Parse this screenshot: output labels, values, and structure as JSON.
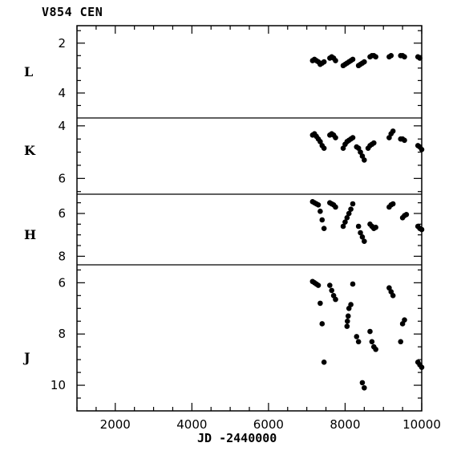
{
  "chart_data": {
    "type": "scatter",
    "title": "V854 CEN",
    "xlabel": "JD -2440000",
    "xlim": [
      1000,
      10000
    ],
    "xticks": [
      "2000",
      "4000",
      "6000",
      "8000",
      "10000"
    ],
    "panels": [
      {
        "label": "L",
        "ylim": [
          1.3,
          5.0
        ],
        "yticks": [
          "2",
          "4"
        ],
        "points": [
          [
            7150,
            2.7
          ],
          [
            7200,
            2.65
          ],
          [
            7250,
            2.7
          ],
          [
            7300,
            2.75
          ],
          [
            7350,
            2.85
          ],
          [
            7400,
            2.8
          ],
          [
            7450,
            2.75
          ],
          [
            7600,
            2.6
          ],
          [
            7650,
            2.55
          ],
          [
            7700,
            2.6
          ],
          [
            7750,
            2.7
          ],
          [
            7950,
            2.9
          ],
          [
            8000,
            2.85
          ],
          [
            8050,
            2.8
          ],
          [
            8100,
            2.75
          ],
          [
            8150,
            2.7
          ],
          [
            8200,
            2.65
          ],
          [
            8350,
            2.9
          ],
          [
            8400,
            2.85
          ],
          [
            8450,
            2.8
          ],
          [
            8500,
            2.75
          ],
          [
            8650,
            2.55
          ],
          [
            8700,
            2.5
          ],
          [
            8750,
            2.5
          ],
          [
            8800,
            2.55
          ],
          [
            9150,
            2.55
          ],
          [
            9200,
            2.5
          ],
          [
            9450,
            2.5
          ],
          [
            9500,
            2.5
          ],
          [
            9550,
            2.55
          ],
          [
            9900,
            2.55
          ],
          [
            9950,
            2.6
          ]
        ]
      },
      {
        "label": "K",
        "ylim": [
          3.7,
          6.6
        ],
        "yticks": [
          "4",
          "6"
        ],
        "points": [
          [
            7150,
            4.35
          ],
          [
            7200,
            4.3
          ],
          [
            7250,
            4.4
          ],
          [
            7300,
            4.5
          ],
          [
            7350,
            4.6
          ],
          [
            7400,
            4.75
          ],
          [
            7450,
            4.85
          ],
          [
            7600,
            4.35
          ],
          [
            7650,
            4.3
          ],
          [
            7700,
            4.35
          ],
          [
            7750,
            4.45
          ],
          [
            7950,
            4.85
          ],
          [
            8000,
            4.7
          ],
          [
            8050,
            4.6
          ],
          [
            8100,
            4.55
          ],
          [
            8150,
            4.5
          ],
          [
            8200,
            4.45
          ],
          [
            8300,
            4.8
          ],
          [
            8350,
            4.85
          ],
          [
            8400,
            5.0
          ],
          [
            8450,
            5.15
          ],
          [
            8500,
            5.3
          ],
          [
            8600,
            4.85
          ],
          [
            8650,
            4.75
          ],
          [
            8700,
            4.7
          ],
          [
            8750,
            4.65
          ],
          [
            9150,
            4.45
          ],
          [
            9200,
            4.3
          ],
          [
            9250,
            4.2
          ],
          [
            9450,
            4.5
          ],
          [
            9500,
            4.5
          ],
          [
            9550,
            4.55
          ],
          [
            9900,
            4.75
          ],
          [
            9950,
            4.8
          ],
          [
            10000,
            4.9
          ]
        ]
      },
      {
        "label": "H",
        "ylim": [
          5.1,
          8.4
        ],
        "yticks": [
          "6",
          "8"
        ],
        "points": [
          [
            7150,
            5.45
          ],
          [
            7200,
            5.5
          ],
          [
            7250,
            5.55
          ],
          [
            7300,
            5.6
          ],
          [
            7350,
            5.9
          ],
          [
            7400,
            6.3
          ],
          [
            7450,
            6.7
          ],
          [
            7600,
            5.5
          ],
          [
            7650,
            5.55
          ],
          [
            7700,
            5.6
          ],
          [
            7750,
            5.7
          ],
          [
            7950,
            6.6
          ],
          [
            8000,
            6.4
          ],
          [
            8050,
            6.2
          ],
          [
            8100,
            6.0
          ],
          [
            8150,
            5.8
          ],
          [
            8200,
            5.55
          ],
          [
            8350,
            6.6
          ],
          [
            8400,
            6.9
          ],
          [
            8450,
            7.1
          ],
          [
            8500,
            7.3
          ],
          [
            8650,
            6.5
          ],
          [
            8700,
            6.6
          ],
          [
            8750,
            6.7
          ],
          [
            8800,
            6.65
          ],
          [
            9150,
            5.7
          ],
          [
            9200,
            5.6
          ],
          [
            9250,
            5.55
          ],
          [
            9500,
            6.2
          ],
          [
            9550,
            6.1
          ],
          [
            9600,
            6.05
          ],
          [
            9900,
            6.6
          ],
          [
            9950,
            6.7
          ],
          [
            10000,
            6.75
          ]
        ]
      },
      {
        "label": "J",
        "ylim": [
          5.3,
          11.0
        ],
        "yticks": [
          "6",
          "8",
          "10"
        ],
        "points": [
          [
            7150,
            5.95
          ],
          [
            7200,
            6.0
          ],
          [
            7250,
            6.05
          ],
          [
            7300,
            6.1
          ],
          [
            7350,
            6.8
          ],
          [
            7400,
            7.6
          ],
          [
            7450,
            9.1
          ],
          [
            7600,
            6.1
          ],
          [
            7650,
            6.3
          ],
          [
            7700,
            6.5
          ],
          [
            7750,
            6.65
          ],
          [
            8050,
            7.7
          ],
          [
            8060,
            7.5
          ],
          [
            8080,
            7.3
          ],
          [
            8100,
            7.0
          ],
          [
            8150,
            6.85
          ],
          [
            8200,
            6.05
          ],
          [
            8300,
            8.1
          ],
          [
            8350,
            8.3
          ],
          [
            8450,
            9.9
          ],
          [
            8500,
            10.1
          ],
          [
            8650,
            7.9
          ],
          [
            8700,
            8.3
          ],
          [
            8750,
            8.5
          ],
          [
            8800,
            8.6
          ],
          [
            9150,
            6.2
          ],
          [
            9200,
            6.35
          ],
          [
            9250,
            6.5
          ],
          [
            9450,
            8.3
          ],
          [
            9500,
            7.6
          ],
          [
            9550,
            7.45
          ],
          [
            9900,
            9.1
          ],
          [
            9950,
            9.2
          ],
          [
            10000,
            9.3
          ]
        ]
      }
    ],
    "marker_color": "#000000",
    "grid": false
  }
}
